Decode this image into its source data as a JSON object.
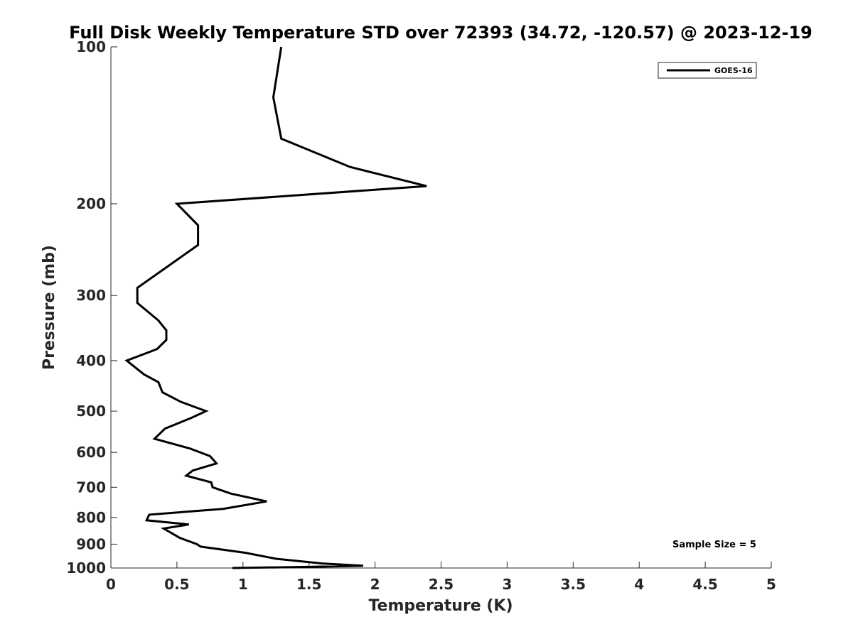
{
  "chart_data": {
    "type": "line",
    "title": "Full Disk Weekly Temperature STD over 72393 (34.72, -120.57) @ 2023-12-19",
    "xlabel": "Temperature (K)",
    "ylabel": "Pressure (mb)",
    "xlim": [
      0,
      5
    ],
    "ylim": [
      1000,
      100
    ],
    "y_scale": "log",
    "y_reversed": true,
    "grid": false,
    "x_ticks": [
      0,
      0.5,
      1,
      1.5,
      2,
      2.5,
      3,
      3.5,
      4,
      4.5,
      5
    ],
    "x_tick_labels": [
      "0",
      "0.5",
      "1",
      "1.5",
      "2",
      "2.5",
      "3",
      "3.5",
      "4",
      "4.5",
      "5"
    ],
    "y_ticks": [
      100,
      200,
      300,
      400,
      500,
      600,
      700,
      800,
      900,
      1000
    ],
    "y_tick_labels": [
      "100",
      "200",
      "300",
      "400",
      "500",
      "600",
      "700",
      "800",
      "900",
      "1000"
    ],
    "legend": {
      "position": "top-right",
      "entries": [
        "GOES-16"
      ]
    },
    "annotation": "Sample Size = 5",
    "line_color": "#000000",
    "series": [
      {
        "name": "GOES-16",
        "points": [
          [
            1.29,
            100
          ],
          [
            1.23,
            125
          ],
          [
            1.29,
            150
          ],
          [
            1.81,
            170
          ],
          [
            2.39,
            185
          ],
          [
            0.5,
            200
          ],
          [
            0.66,
            220
          ],
          [
            0.66,
            240
          ],
          [
            0.2,
            290
          ],
          [
            0.2,
            310
          ],
          [
            0.36,
            335
          ],
          [
            0.42,
            350
          ],
          [
            0.42,
            365
          ],
          [
            0.35,
            380
          ],
          [
            0.12,
            400
          ],
          [
            0.25,
            425
          ],
          [
            0.36,
            440
          ],
          [
            0.39,
            460
          ],
          [
            0.53,
            480
          ],
          [
            0.72,
            500
          ],
          [
            0.61,
            515
          ],
          [
            0.41,
            540
          ],
          [
            0.33,
            565
          ],
          [
            0.6,
            590
          ],
          [
            0.75,
            610
          ],
          [
            0.8,
            630
          ],
          [
            0.62,
            650
          ],
          [
            0.57,
            665
          ],
          [
            0.76,
            685
          ],
          [
            0.77,
            700
          ],
          [
            0.91,
            720
          ],
          [
            1.18,
            745
          ],
          [
            0.85,
            770
          ],
          [
            0.29,
            790
          ],
          [
            0.27,
            810
          ],
          [
            0.59,
            825
          ],
          [
            0.4,
            840
          ],
          [
            0.52,
            875
          ],
          [
            0.65,
            900
          ],
          [
            0.68,
            910
          ],
          [
            1.02,
            935
          ],
          [
            1.25,
            960
          ],
          [
            1.6,
            980
          ],
          [
            1.91,
            990
          ],
          [
            1.5,
            995
          ],
          [
            0.92,
            1000
          ]
        ]
      }
    ]
  }
}
